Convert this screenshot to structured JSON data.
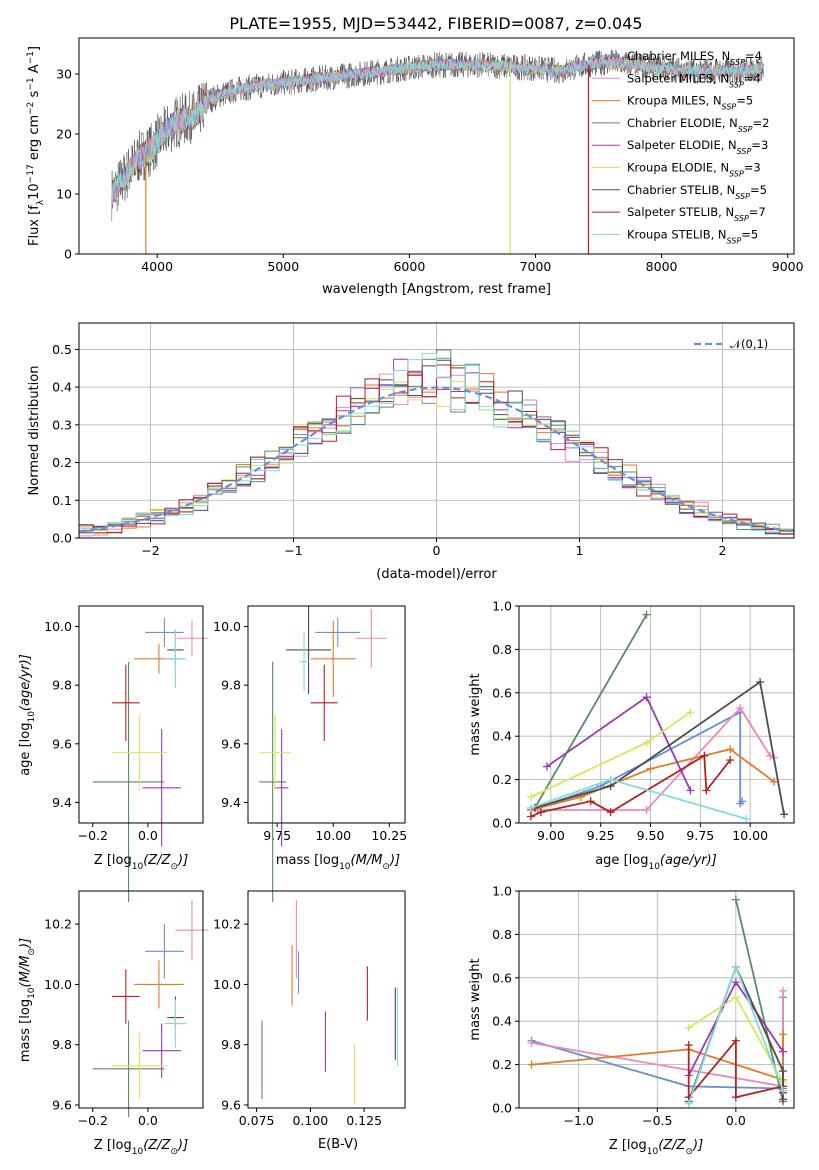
{
  "figure_title": "PLATE=1955, MJD=53442, FIBERID=0087, z=0.045",
  "colors": {
    "Chabrier MILES": "#6a8fd6",
    "Salpeter MILES": "#e98ab8",
    "Kroupa MILES": "#de7b26",
    "Chabrier ELODIE": "#5b8a62",
    "Salpeter ELODIE": "#9a38b8",
    "Kroupa ELODIE": "#d2ea5a",
    "Chabrier STELIB": "#4d4d4d",
    "Salpeter STELIB": "#b22222",
    "Kroupa STELIB": "#86dada"
  },
  "chart_data": [
    {
      "id": "spectrum",
      "type": "line",
      "title": "PLATE=1955, MJD=53442, FIBERID=0087, z=0.045",
      "xlabel": "wavelength [Angstrom, rest frame]",
      "ylabel_parts": [
        "Flux [f",
        "λ",
        "10",
        "−17",
        " erg cm",
        "−2",
        " s",
        "−1",
        " A",
        "−1",
        "]"
      ],
      "xlim": [
        3380,
        9050
      ],
      "ylim": [
        0,
        36
      ],
      "xticks": [
        4000,
        5000,
        6000,
        7000,
        8000,
        9000
      ],
      "yticks": [
        0,
        10,
        20,
        30
      ],
      "legend": [
        {
          "name": "Chabrier MILES",
          "nssp": "4"
        },
        {
          "name": "Salpeter MILES",
          "nssp": "4"
        },
        {
          "name": "Kroupa MILES",
          "nssp": "5"
        },
        {
          "name": "Chabrier ELODIE",
          "nssp": "2"
        },
        {
          "name": "Salpeter ELODIE",
          "nssp": "3"
        },
        {
          "name": "Kroupa ELODIE",
          "nssp": "3"
        },
        {
          "name": "Chabrier STELIB",
          "nssp": "5"
        },
        {
          "name": "Salpeter STELIB",
          "nssp": "7"
        },
        {
          "name": "Kroupa STELIB",
          "nssp": "5"
        }
      ],
      "legend_label_prefix": "N",
      "legend_label_sub": "SSP",
      "legend_position": "upper right",
      "continuum_x": [
        3640,
        3750,
        3850,
        3950,
        4050,
        4150,
        4300,
        4400,
        4500,
        4650,
        4800,
        5000,
        5200,
        5400,
        5600,
        5800,
        6000,
        6200,
        6400,
        6600,
        6800,
        7000,
        7200,
        7400,
        7600,
        7800,
        8000,
        8200,
        8400,
        8600,
        8800
      ],
      "continuum_y": [
        10,
        13,
        16,
        17.5,
        20,
        22,
        23,
        25.5,
        26.5,
        27.5,
        28,
        28.5,
        29,
        29.5,
        30,
        30.5,
        31,
        31.5,
        31.5,
        31.5,
        31.2,
        31,
        30.5,
        31.5,
        32,
        31.5,
        31,
        30.5,
        30.5,
        30.5,
        31
      ],
      "dropouts": [
        {
          "x": 3910,
          "y_min": 0,
          "color": "Kroupa MILES"
        },
        {
          "x": 6800,
          "y_min": 0,
          "color": "Kroupa ELODIE"
        },
        {
          "x": 7420,
          "y_min": 0,
          "color": "Salpeter STELIB"
        }
      ]
    },
    {
      "id": "residuals",
      "type": "histogram",
      "xlabel": "(data-model)/error",
      "ylabel": "Normed distribution",
      "xlim": [
        -2.5,
        2.5
      ],
      "ylim": [
        0,
        0.57
      ],
      "xticks": [
        -2,
        -1,
        0,
        1,
        2
      ],
      "yticks": [
        0.0,
        0.1,
        0.2,
        0.3,
        0.4,
        0.5
      ],
      "bin_width": 0.1,
      "grid": true,
      "reference_curve": {
        "label": "𝒩(0,1)",
        "color": "#6a8fd6",
        "style": "dashed"
      },
      "legend_position": "upper right"
    },
    {
      "id": "age_vs_Z",
      "type": "scatter",
      "xlabel_parts": [
        "Z [log",
        "10",
        "(Z/Z",
        "⊙",
        ")]"
      ],
      "ylabel_parts": [
        "age  [log",
        "10",
        "(age/yr)]"
      ],
      "xlim": [
        -0.25,
        0.2
      ],
      "ylim": [
        9.33,
        10.07
      ],
      "xticks": [
        -0.2,
        0.0
      ],
      "yticks": [
        9.4,
        9.6,
        9.8,
        10.0
      ],
      "errorbars": [
        {
          "c": "Chabrier MILES",
          "x": 0.06,
          "xerr": 0.07,
          "y": 9.98,
          "yerr": 0.05
        },
        {
          "c": "Salpeter MILES",
          "x": 0.16,
          "xerr": 0.06,
          "y": 9.96,
          "yerr": 0.06
        },
        {
          "c": "Kroupa MILES",
          "x": 0.04,
          "xerr": 0.09,
          "y": 9.89,
          "yerr": 0.05
        },
        {
          "c": "Chabrier ELODIE",
          "x": -0.07,
          "xerr": 0.13,
          "y": 9.47,
          "yerr": 0.41
        },
        {
          "c": "Salpeter ELODIE",
          "x": 0.05,
          "xerr": 0.07,
          "y": 9.45,
          "yerr": 0.2
        },
        {
          "c": "Kroupa ELODIE",
          "x": -0.03,
          "xerr": 0.1,
          "y": 9.57,
          "yerr": 0.13
        },
        {
          "c": "Chabrier STELIB",
          "x": 0.1,
          "xerr": 0.03,
          "y": 9.92,
          "yerr": 0.07
        },
        {
          "c": "Salpeter STELIB",
          "x": -0.08,
          "xerr": 0.05,
          "y": 9.74,
          "yerr": 0.13
        },
        {
          "c": "Kroupa STELIB",
          "x": 0.1,
          "xerr": 0.04,
          "y": 9.89,
          "yerr": 0.1
        }
      ]
    },
    {
      "id": "age_vs_mass",
      "type": "scatter",
      "xlabel_parts": [
        "mass [log",
        "10",
        "(M/M",
        "⊙",
        ")]"
      ],
      "xlim": [
        9.62,
        10.32
      ],
      "ylim": [
        9.33,
        10.07
      ],
      "xticks": [
        9.75,
        10.0,
        10.25
      ],
      "yticks": [
        9.4,
        9.6,
        9.8,
        10.0
      ],
      "errorbars": [
        {
          "c": "Chabrier MILES",
          "x": 10.02,
          "xerr": 0.1,
          "y": 9.98,
          "yerr": 0.05
        },
        {
          "c": "Salpeter MILES",
          "x": 10.17,
          "xerr": 0.07,
          "y": 9.96,
          "yerr": 0.1
        },
        {
          "c": "Kroupa MILES",
          "x": 10.0,
          "xerr": 0.1,
          "y": 9.89,
          "yerr": 0.13
        },
        {
          "c": "Chabrier ELODIE",
          "x": 9.73,
          "xerr": 0.06,
          "y": 9.47,
          "yerr": 0.41
        },
        {
          "c": "Salpeter ELODIE",
          "x": 9.77,
          "xerr": 0.03,
          "y": 9.45,
          "yerr": 0.2
        },
        {
          "c": "Kroupa ELODIE",
          "x": 9.74,
          "xerr": 0.07,
          "y": 9.57,
          "yerr": 0.13
        },
        {
          "c": "Chabrier STELIB",
          "x": 9.89,
          "xerr": 0.1,
          "y": 9.92,
          "yerr": 0.15
        },
        {
          "c": "Salpeter STELIB",
          "x": 9.96,
          "xerr": 0.06,
          "y": 9.74,
          "yerr": 0.13
        },
        {
          "c": "Kroupa STELIB",
          "x": 9.87,
          "xerr": 0.02,
          "y": 9.88,
          "yerr": 0.1
        }
      ]
    },
    {
      "id": "weight_vs_age",
      "type": "line",
      "xlabel_parts": [
        "age  [log",
        "10",
        "(age/yr)]"
      ],
      "ylabel": "mass weight",
      "xlim": [
        8.84,
        10.22
      ],
      "ylim": [
        0,
        1
      ],
      "xticks": [
        9.0,
        9.25,
        9.5,
        9.75,
        10.0
      ],
      "yticks": [
        0.0,
        0.2,
        0.4,
        0.6,
        0.8,
        1.0
      ],
      "grid": true,
      "series": [
        {
          "c": "Chabrier MILES",
          "x": [
            8.9,
            9.25,
            9.95,
            9.95,
            9.96
          ],
          "y": [
            0.06,
            0.17,
            0.51,
            0.09,
            0.1
          ]
        },
        {
          "c": "Salpeter MILES",
          "x": [
            8.9,
            9.48,
            9.95,
            10.1,
            10.12
          ],
          "y": [
            0.06,
            0.06,
            0.53,
            0.31,
            0.3
          ]
        },
        {
          "c": "Kroupa MILES",
          "x": [
            8.9,
            9.15,
            9.5,
            9.9,
            10.12
          ],
          "y": [
            0.06,
            0.12,
            0.25,
            0.34,
            0.19
          ]
        },
        {
          "c": "Chabrier ELODIE",
          "x": [
            8.92,
            9.48
          ],
          "y": [
            0.07,
            0.96
          ]
        },
        {
          "c": "Salpeter ELODIE",
          "x": [
            8.98,
            9.48,
            9.7
          ],
          "y": [
            0.26,
            0.58,
            0.15
          ]
        },
        {
          "c": "Kroupa ELODIE",
          "x": [
            8.9,
            9.48,
            9.7
          ],
          "y": [
            0.12,
            0.37,
            0.51
          ]
        },
        {
          "c": "Chabrier STELIB",
          "x": [
            8.92,
            9.3,
            10.05,
            10.17
          ],
          "y": [
            0.07,
            0.17,
            0.65,
            0.04
          ]
        },
        {
          "c": "Salpeter STELIB",
          "x": [
            8.9,
            8.95,
            9.2,
            9.3,
            9.77,
            9.78,
            9.9
          ],
          "y": [
            0.03,
            0.05,
            0.1,
            0.05,
            0.31,
            0.15,
            0.29
          ]
        },
        {
          "c": "Kroupa STELIB",
          "x": [
            8.9,
            9.3,
            9.98
          ],
          "y": [
            0.07,
            0.2,
            0.02
          ]
        }
      ]
    },
    {
      "id": "mass_vs_Z",
      "type": "scatter",
      "xlabel_parts": [
        "Z [log",
        "10",
        "(Z/Z",
        "⊙",
        ")]"
      ],
      "ylabel_parts": [
        "mass [log",
        "10",
        "(M/M",
        "⊙",
        ")]"
      ],
      "xlim": [
        -0.25,
        0.2
      ],
      "ylim": [
        9.59,
        10.31
      ],
      "xticks": [
        -0.2,
        0.0
      ],
      "yticks": [
        9.6,
        9.8,
        10.0,
        10.2
      ],
      "errorbars": [
        {
          "c": "Chabrier MILES",
          "x": 0.06,
          "xerr": 0.07,
          "y": 10.11,
          "yerr": 0.09
        },
        {
          "c": "Salpeter MILES",
          "x": 0.16,
          "xerr": 0.06,
          "y": 10.18,
          "yerr": 0.1
        },
        {
          "c": "Kroupa MILES",
          "x": 0.04,
          "xerr": 0.09,
          "y": 10.0,
          "yerr": 0.08
        },
        {
          "c": "Chabrier ELODIE",
          "x": -0.07,
          "xerr": 0.13,
          "y": 9.72,
          "yerr": 0.16
        },
        {
          "c": "Salpeter ELODIE",
          "x": 0.05,
          "xerr": 0.07,
          "y": 9.78,
          "yerr": 0.09
        },
        {
          "c": "Kroupa ELODIE",
          "x": -0.03,
          "xerr": 0.1,
          "y": 9.73,
          "yerr": 0.11
        },
        {
          "c": "Chabrier STELIB",
          "x": 0.1,
          "xerr": 0.03,
          "y": 9.89,
          "yerr": 0.07
        },
        {
          "c": "Salpeter STELIB",
          "x": -0.08,
          "xerr": 0.05,
          "y": 9.96,
          "yerr": 0.09
        },
        {
          "c": "Kroupa STELIB",
          "x": 0.1,
          "xerr": 0.04,
          "y": 9.87,
          "yerr": 0.08
        }
      ]
    },
    {
      "id": "mass_vs_ebv",
      "type": "scatter",
      "xlabel": "E(B-V)",
      "xlim": [
        0.071,
        0.144
      ],
      "ylim": [
        9.59,
        10.31
      ],
      "xticks": [
        0.075,
        0.1,
        0.125
      ],
      "yticks": [
        9.6,
        9.8,
        10.0,
        10.2
      ],
      "errorbars": [
        {
          "c": "Chabrier MILES",
          "x": 0.0945,
          "y": 10.04,
          "yerr": 0.07
        },
        {
          "c": "Salpeter MILES",
          "x": 0.0935,
          "y": 10.15,
          "yerr": 0.13
        },
        {
          "c": "Kroupa MILES",
          "x": 0.0915,
          "y": 10.03,
          "yerr": 0.1
        },
        {
          "c": "Chabrier ELODIE",
          "x": 0.0775,
          "y": 9.75,
          "yerr": 0.13
        },
        {
          "c": "Salpeter ELODIE",
          "x": 0.107,
          "y": 9.81,
          "yerr": 0.1
        },
        {
          "c": "Kroupa ELODIE",
          "x": 0.1205,
          "y": 9.7,
          "yerr": 0.1
        },
        {
          "c": "Chabrier STELIB",
          "x": 0.1395,
          "y": 9.87,
          "yerr": 0.12
        },
        {
          "c": "Salpeter STELIB",
          "x": 0.1265,
          "y": 9.97,
          "yerr": 0.09
        },
        {
          "c": "Kroupa STELIB",
          "x": 0.1405,
          "y": 9.86,
          "yerr": 0.13
        }
      ]
    },
    {
      "id": "weight_vs_Z",
      "type": "line",
      "xlabel_parts": [
        "Z [log",
        "10",
        "(Z/Z",
        "⊙",
        ")]"
      ],
      "ylabel": "mass weight",
      "xlim": [
        -1.38,
        0.37
      ],
      "ylim": [
        0,
        1
      ],
      "xticks": [
        -1.0,
        -0.5,
        0.0
      ],
      "yticks": [
        0.0,
        0.2,
        0.4,
        0.6,
        0.8,
        1.0
      ],
      "grid": true,
      "series": [
        {
          "c": "Chabrier MILES",
          "x": [
            -1.3,
            -0.3,
            0.3,
            0.3
          ],
          "y": [
            0.31,
            0.1,
            0.09,
            0.51
          ]
        },
        {
          "c": "Salpeter MILES",
          "x": [
            -1.3,
            0.3,
            0.3
          ],
          "y": [
            0.3,
            0.1,
            0.54
          ]
        },
        {
          "c": "Kroupa MILES",
          "x": [
            -1.3,
            -0.3,
            0.3,
            0.3
          ],
          "y": [
            0.2,
            0.27,
            0.13,
            0.34
          ]
        },
        {
          "c": "Chabrier ELODIE",
          "x": [
            0.0,
            0.3
          ],
          "y": [
            0.96,
            0.03
          ]
        },
        {
          "c": "Salpeter ELODIE",
          "x": [
            -0.3,
            0.0,
            0.3
          ],
          "y": [
            0.15,
            0.58,
            0.26
          ]
        },
        {
          "c": "Kroupa ELODIE",
          "x": [
            -0.3,
            0.0,
            0.3
          ],
          "y": [
            0.37,
            0.51,
            0.12
          ]
        },
        {
          "c": "Chabrier STELIB",
          "x": [
            -0.3,
            0.0,
            0.3,
            0.3
          ],
          "y": [
            0.03,
            0.65,
            0.17,
            0.04
          ]
        },
        {
          "c": "Salpeter STELIB",
          "x": [
            -0.3,
            -0.3,
            0.0,
            0.0,
            0.3,
            0.3
          ],
          "y": [
            0.29,
            0.05,
            0.31,
            0.05,
            0.1,
            0.07
          ]
        },
        {
          "c": "Kroupa STELIB",
          "x": [
            -0.3,
            0.0,
            0.3
          ],
          "y": [
            0.02,
            0.65,
            0.08
          ]
        }
      ]
    }
  ]
}
